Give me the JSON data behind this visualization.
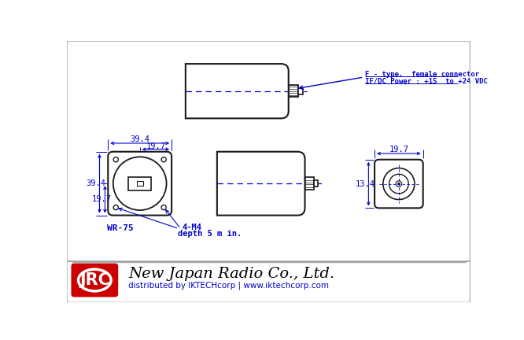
{
  "drawing_bg": "#ffffff",
  "line_color": "#1a1a1a",
  "blue_color": "#0000cc",
  "red_color": "#cc0000",
  "border_color": "#999999",
  "footer_line1": "New Japan Radio Co., Ltd.",
  "footer_line2": "distributed by IKTECHcorp | www.iktechcorp.com",
  "jrc_text": "JRC",
  "connector_label1": "F - type,  female connector",
  "connector_label2": "IF/DC Power : +15  to +24 VDC",
  "dim_39_4": "39.4",
  "dim_19_7_top": "19.7",
  "dim_19_7_left": "19.7",
  "dim_39_4_left": "39.4",
  "dim_19_7_right": "19.7",
  "dim_13_4": "13.4",
  "label_wr75": "WR-75",
  "label_4m4": "4-M4",
  "label_depth": "depth 5 m in."
}
